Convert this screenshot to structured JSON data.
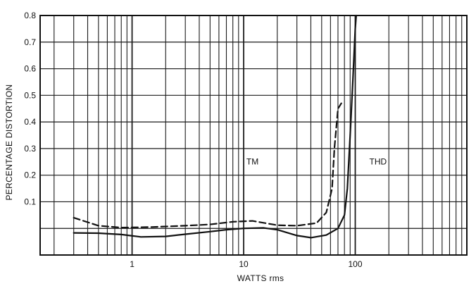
{
  "chart_data": {
    "type": "line",
    "title": "",
    "xlabel": "WATTS rms",
    "ylabel": "PERCENTAGE DISTORTION",
    "x_scale": "log",
    "xlim": [
      0.15,
      1000
    ],
    "ylim": [
      -0.1,
      0.8
    ],
    "x_tick_labels": [
      {
        "value": 1,
        "label": "1"
      },
      {
        "value": 10,
        "label": "10"
      },
      {
        "value": 100,
        "label": "100"
      }
    ],
    "y_tick_labels": [
      {
        "value": 0.1,
        "label": "0.1"
      },
      {
        "value": 0.2,
        "label": "0.2"
      },
      {
        "value": 0.3,
        "label": "0.3"
      },
      {
        "value": 0.4,
        "label": "0.4"
      },
      {
        "value": 0.5,
        "label": "0.5"
      },
      {
        "value": 0.6,
        "label": "0.6"
      },
      {
        "value": 0.7,
        "label": "0.7"
      },
      {
        "value": 0.8,
        "label": "0.8"
      }
    ],
    "grid": true,
    "series": [
      {
        "name": "THD",
        "style": "solid",
        "color": "#111111",
        "points": [
          [
            0.3,
            -0.017
          ],
          [
            0.5,
            -0.018
          ],
          [
            0.8,
            -0.023
          ],
          [
            1.2,
            -0.032
          ],
          [
            2,
            -0.03
          ],
          [
            3,
            -0.022
          ],
          [
            5,
            -0.012
          ],
          [
            7,
            -0.005
          ],
          [
            10,
            0.0
          ],
          [
            15,
            0.002
          ],
          [
            20,
            -0.005
          ],
          [
            30,
            -0.027
          ],
          [
            40,
            -0.035
          ],
          [
            55,
            -0.025
          ],
          [
            70,
            0.0
          ],
          [
            80,
            0.05
          ],
          [
            85,
            0.15
          ],
          [
            90,
            0.35
          ],
          [
            95,
            0.55
          ],
          [
            100,
            0.75
          ],
          [
            102,
            0.8
          ]
        ]
      },
      {
        "name": "TM",
        "style": "dashed",
        "color": "#111111",
        "points": [
          [
            0.3,
            0.04
          ],
          [
            0.5,
            0.01
          ],
          [
            0.8,
            0.003
          ],
          [
            1.5,
            0.005
          ],
          [
            3,
            0.01
          ],
          [
            5,
            0.015
          ],
          [
            8,
            0.025
          ],
          [
            12,
            0.028
          ],
          [
            20,
            0.012
          ],
          [
            30,
            0.01
          ],
          [
            45,
            0.02
          ],
          [
            55,
            0.06
          ],
          [
            62,
            0.15
          ],
          [
            65,
            0.3
          ],
          [
            70,
            0.45
          ],
          [
            75,
            0.47
          ]
        ]
      }
    ],
    "annotations": [
      {
        "text": "TM",
        "x": 12,
        "y": 0.24
      },
      {
        "text": "THD",
        "x": 160,
        "y": 0.24
      }
    ]
  }
}
